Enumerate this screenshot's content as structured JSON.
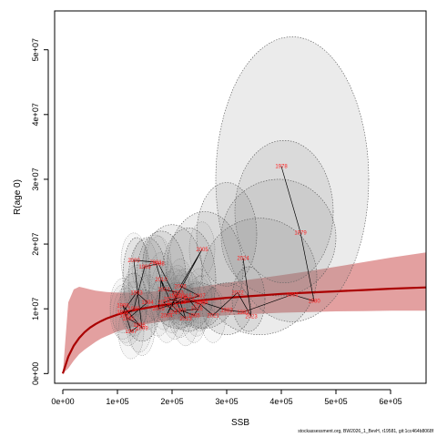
{
  "footer_text": "stockassessment.org, BW2026_1_BevH, r19581, git:1cc464b8068f",
  "chart_data": {
    "type": "scatter",
    "xlabel": "SSB",
    "ylabel": "R(age 0)",
    "xlim": [
      -15000,
      665000
    ],
    "ylim": [
      -1500000,
      56000000
    ],
    "x_ticks": [
      0,
      100000,
      200000,
      300000,
      400000,
      500000,
      600000
    ],
    "x_tick_labels": [
      "0e+00",
      "1e+05",
      "2e+05",
      "3e+05",
      "4e+05",
      "5e+05",
      "6e+05"
    ],
    "y_ticks": [
      0,
      10000000,
      20000000,
      30000000,
      40000000,
      50000000
    ],
    "y_tick_labels": [
      "0e+00",
      "1e+07",
      "2e+07",
      "3e+07",
      "4e+07",
      "5e+07"
    ],
    "colors": {
      "fit_line": "#aa0000",
      "fit_band": "#d98080",
      "ellipse_fill": "#808080",
      "labels": "#ff2020",
      "path": "#000000"
    },
    "fit": {
      "name": "Beverton-Holt",
      "x": [
        0,
        10000,
        20000,
        30000,
        40000,
        50000,
        60000,
        70000,
        80000,
        100000,
        120000,
        150000,
        200000,
        250000,
        300000,
        350000,
        400000,
        450000,
        500000,
        550000,
        600000,
        665000
      ],
      "y": [
        0,
        2600000,
        4300000,
        5500000,
        6400000,
        7100000,
        7650000,
        8100000,
        8500000,
        9100000,
        9600000,
        10100000,
        10800000,
        11300000,
        11700000,
        12000000,
        12300000,
        12500000,
        12700000,
        12900000,
        13100000,
        13300000
      ],
      "lower": [
        0,
        800000,
        2000000,
        3000000,
        3700000,
        4300000,
        4900000,
        5400000,
        5800000,
        6500000,
        7000000,
        7600000,
        8300000,
        8700000,
        9000000,
        9200000,
        9400000,
        9500000,
        9600000,
        9650000,
        9700000,
        9700000
      ],
      "upper": [
        0,
        11000000,
        13000000,
        13400000,
        13200000,
        13000000,
        12800000,
        12700000,
        12600000,
        12500000,
        12500000,
        12600000,
        12900000,
        13400000,
        14000000,
        14600000,
        15200000,
        15800000,
        16500000,
        17200000,
        17900000,
        18700000
      ]
    },
    "points": [
      {
        "year": "1978",
        "x": 400000,
        "y": 32000000
      },
      {
        "year": "1979",
        "x": 435000,
        "y": 21800000
      },
      {
        "year": "1980",
        "x": 460000,
        "y": 11200000
      },
      {
        "year": "1981",
        "x": 420000,
        "y": 12200000
      },
      {
        "year": "1982",
        "x": 330000,
        "y": 9500000
      },
      {
        "year": "1983",
        "x": 300000,
        "y": 9800000
      },
      {
        "year": "1984",
        "x": 255000,
        "y": 11000000
      },
      {
        "year": "1985",
        "x": 240000,
        "y": 9000000
      },
      {
        "year": "1986",
        "x": 215000,
        "y": 9800000
      },
      {
        "year": "1987",
        "x": 205000,
        "y": 12000000
      },
      {
        "year": "1988",
        "x": 175000,
        "y": 17000000
      },
      {
        "year": "1989",
        "x": 150000,
        "y": 16500000
      },
      {
        "year": "1990",
        "x": 130000,
        "y": 10000000
      },
      {
        "year": "1991",
        "x": 115000,
        "y": 9000000
      },
      {
        "year": "1992",
        "x": 110000,
        "y": 9500000
      },
      {
        "year": "1993",
        "x": 135000,
        "y": 12500000
      },
      {
        "year": "1994",
        "x": 155000,
        "y": 11000000
      },
      {
        "year": "1995",
        "x": 120000,
        "y": 8500000
      },
      {
        "year": "1996",
        "x": 140000,
        "y": 7500000
      },
      {
        "year": "1997",
        "x": 125000,
        "y": 6500000
      },
      {
        "year": "1998",
        "x": 110000,
        "y": 10500000
      },
      {
        "year": "1999",
        "x": 145000,
        "y": 7000000
      },
      {
        "year": "2000",
        "x": 130000,
        "y": 17500000
      },
      {
        "year": "2001",
        "x": 170000,
        "y": 17200000
      },
      {
        "year": "2002",
        "x": 185000,
        "y": 13000000
      },
      {
        "year": "2003",
        "x": 210000,
        "y": 12500000
      },
      {
        "year": "2004",
        "x": 190000,
        "y": 9000000
      },
      {
        "year": "2005",
        "x": 255000,
        "y": 19200000
      },
      {
        "year": "2006",
        "x": 215000,
        "y": 13500000
      },
      {
        "year": "2007",
        "x": 250000,
        "y": 12000000
      },
      {
        "year": "2008",
        "x": 230000,
        "y": 11500000
      },
      {
        "year": "2009",
        "x": 175000,
        "y": 10000000
      },
      {
        "year": "2010",
        "x": 180000,
        "y": 14500000
      },
      {
        "year": "2011",
        "x": 195000,
        "y": 11500000
      },
      {
        "year": "2012",
        "x": 215000,
        "y": 11000000
      },
      {
        "year": "2013",
        "x": 225000,
        "y": 8500000
      },
      {
        "year": "2014",
        "x": 200000,
        "y": 10500000
      },
      {
        "year": "2015",
        "x": 225000,
        "y": 12000000
      },
      {
        "year": "2016",
        "x": 245000,
        "y": 10000000
      },
      {
        "year": "2017",
        "x": 205000,
        "y": 9500000
      },
      {
        "year": "2018",
        "x": 185000,
        "y": 11000000
      },
      {
        "year": "2019",
        "x": 215000,
        "y": 11800000
      },
      {
        "year": "2020",
        "x": 250000,
        "y": 10800000
      },
      {
        "year": "2021",
        "x": 275000,
        "y": 9000000
      },
      {
        "year": "2022",
        "x": 320000,
        "y": 12500000
      },
      {
        "year": "2023",
        "x": 345000,
        "y": 8800000
      },
      {
        "year": "2024",
        "x": 330000,
        "y": 17800000
      }
    ],
    "ellipses": [
      {
        "cx": 420000,
        "cy": 30000000,
        "rx": 140000,
        "ry": 22000000
      },
      {
        "cx": 405000,
        "cy": 25000000,
        "rx": 90000,
        "ry": 11000000
      },
      {
        "cx": 395000,
        "cy": 21000000,
        "rx": 105000,
        "ry": 9000000
      },
      {
        "cx": 360000,
        "cy": 15000000,
        "rx": 105000,
        "ry": 9000000
      },
      {
        "cx": 300000,
        "cy": 21500000,
        "rx": 55000,
        "ry": 8000000
      },
      {
        "cx": 260000,
        "cy": 16000000,
        "rx": 70000,
        "ry": 9000000
      },
      {
        "cx": 230000,
        "cy": 14500000,
        "rx": 50000,
        "ry": 8000000
      },
      {
        "cx": 200000,
        "cy": 16000000,
        "rx": 55000,
        "ry": 7000000
      },
      {
        "cx": 180000,
        "cy": 15000000,
        "rx": 45000,
        "ry": 7000000
      },
      {
        "cx": 155000,
        "cy": 14500000,
        "rx": 35000,
        "ry": 6500000
      },
      {
        "cx": 135000,
        "cy": 15000000,
        "rx": 25000,
        "ry": 6000000
      },
      {
        "cx": 130000,
        "cy": 11000000,
        "rx": 25000,
        "ry": 4500000
      },
      {
        "cx": 145000,
        "cy": 9000000,
        "rx": 30000,
        "ry": 4000000
      },
      {
        "cx": 210000,
        "cy": 10500000,
        "rx": 40000,
        "ry": 3500000
      },
      {
        "cx": 250000,
        "cy": 10500000,
        "rx": 40000,
        "ry": 3500000
      },
      {
        "cx": 300000,
        "cy": 10000000,
        "rx": 45000,
        "ry": 4000000
      },
      {
        "cx": 340000,
        "cy": 11500000,
        "rx": 30000,
        "ry": 5000000
      }
    ]
  }
}
